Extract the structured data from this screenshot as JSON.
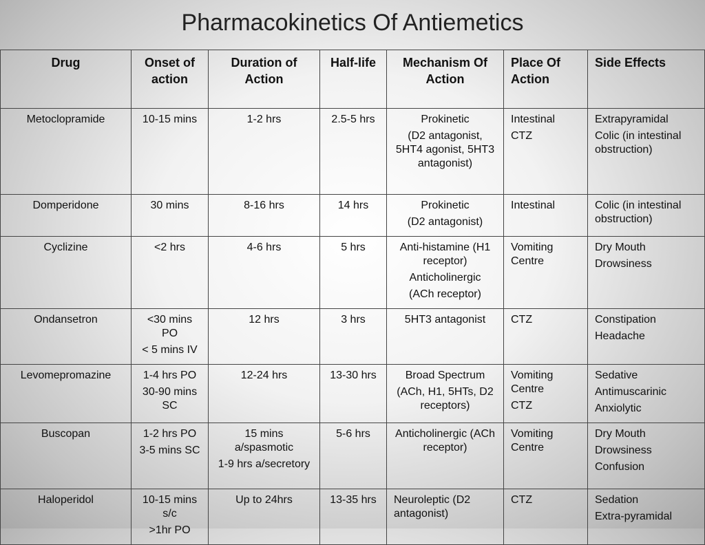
{
  "title": "Pharmacokinetics Of Antiemetics",
  "table": {
    "header": [
      "Drug",
      "Onset of action",
      "Duration of Action",
      "Half-life",
      "Mechanism Of Action",
      "Place Of Action",
      "Side Effects"
    ],
    "rows": [
      [
        [
          "Metoclopramide"
        ],
        [
          "10-15 mins"
        ],
        [
          "1-2 hrs"
        ],
        [
          "2.5-5 hrs"
        ],
        [
          "Prokinetic",
          "(D2 antagonist, 5HT4 agonist, 5HT3 antagonist)"
        ],
        [
          "Intestinal",
          "CTZ"
        ],
        [
          "Extrapyramidal",
          "Colic (in intestinal obstruction)"
        ]
      ],
      [
        [
          "Domperidone"
        ],
        [
          "30 mins"
        ],
        [
          "8-16 hrs"
        ],
        [
          "14 hrs"
        ],
        [
          "Prokinetic",
          "(D2 antagonist)"
        ],
        [
          "Intestinal"
        ],
        [
          "Colic (in intestinal obstruction)"
        ]
      ],
      [
        [
          "Cyclizine"
        ],
        [
          "<2 hrs"
        ],
        [
          "4-6 hrs"
        ],
        [
          "5 hrs"
        ],
        [
          "Anti-histamine (H1 receptor)",
          "Anticholinergic",
          "(ACh receptor)"
        ],
        [
          "Vomiting Centre"
        ],
        [
          "Dry Mouth",
          "Drowsiness"
        ]
      ],
      [
        [
          "Ondansetron"
        ],
        [
          "<30 mins PO",
          "< 5 mins IV"
        ],
        [
          "12 hrs"
        ],
        [
          "3 hrs"
        ],
        [
          "5HT3 antagonist"
        ],
        [
          "CTZ"
        ],
        [
          "Constipation",
          "Headache"
        ]
      ],
      [
        [
          "Levomepromazine"
        ],
        [
          "1-4 hrs PO",
          "30-90 mins SC"
        ],
        [
          "12-24 hrs"
        ],
        [
          "13-30 hrs"
        ],
        [
          "Broad Spectrum",
          "(ACh, H1, 5HTs, D2 receptors)"
        ],
        [
          "Vomiting Centre",
          "CTZ"
        ],
        [
          "Sedative",
          "Antimuscarinic",
          "Anxiolytic"
        ]
      ],
      [
        [
          "Buscopan"
        ],
        [
          "1-2 hrs PO",
          "3-5 mins SC"
        ],
        [
          "15 mins a/spasmotic",
          "1-9 hrs a/secretory"
        ],
        [
          "5-6 hrs"
        ],
        [
          "Anticholinergic (ACh receptor)"
        ],
        [
          "Vomiting Centre"
        ],
        [
          "Dry Mouth",
          "Drowsiness",
          "Confusion"
        ]
      ],
      [
        [
          "Haloperidol"
        ],
        [
          "10-15 mins s/c",
          ">1hr PO"
        ],
        [
          "Up to 24hrs"
        ],
        [
          "13-35 hrs"
        ],
        [
          "Neuroleptic (D2 antagonist)"
        ],
        [
          "CTZ"
        ],
        [
          "Sedation",
          "Extra-pyramidal"
        ]
      ]
    ]
  }
}
